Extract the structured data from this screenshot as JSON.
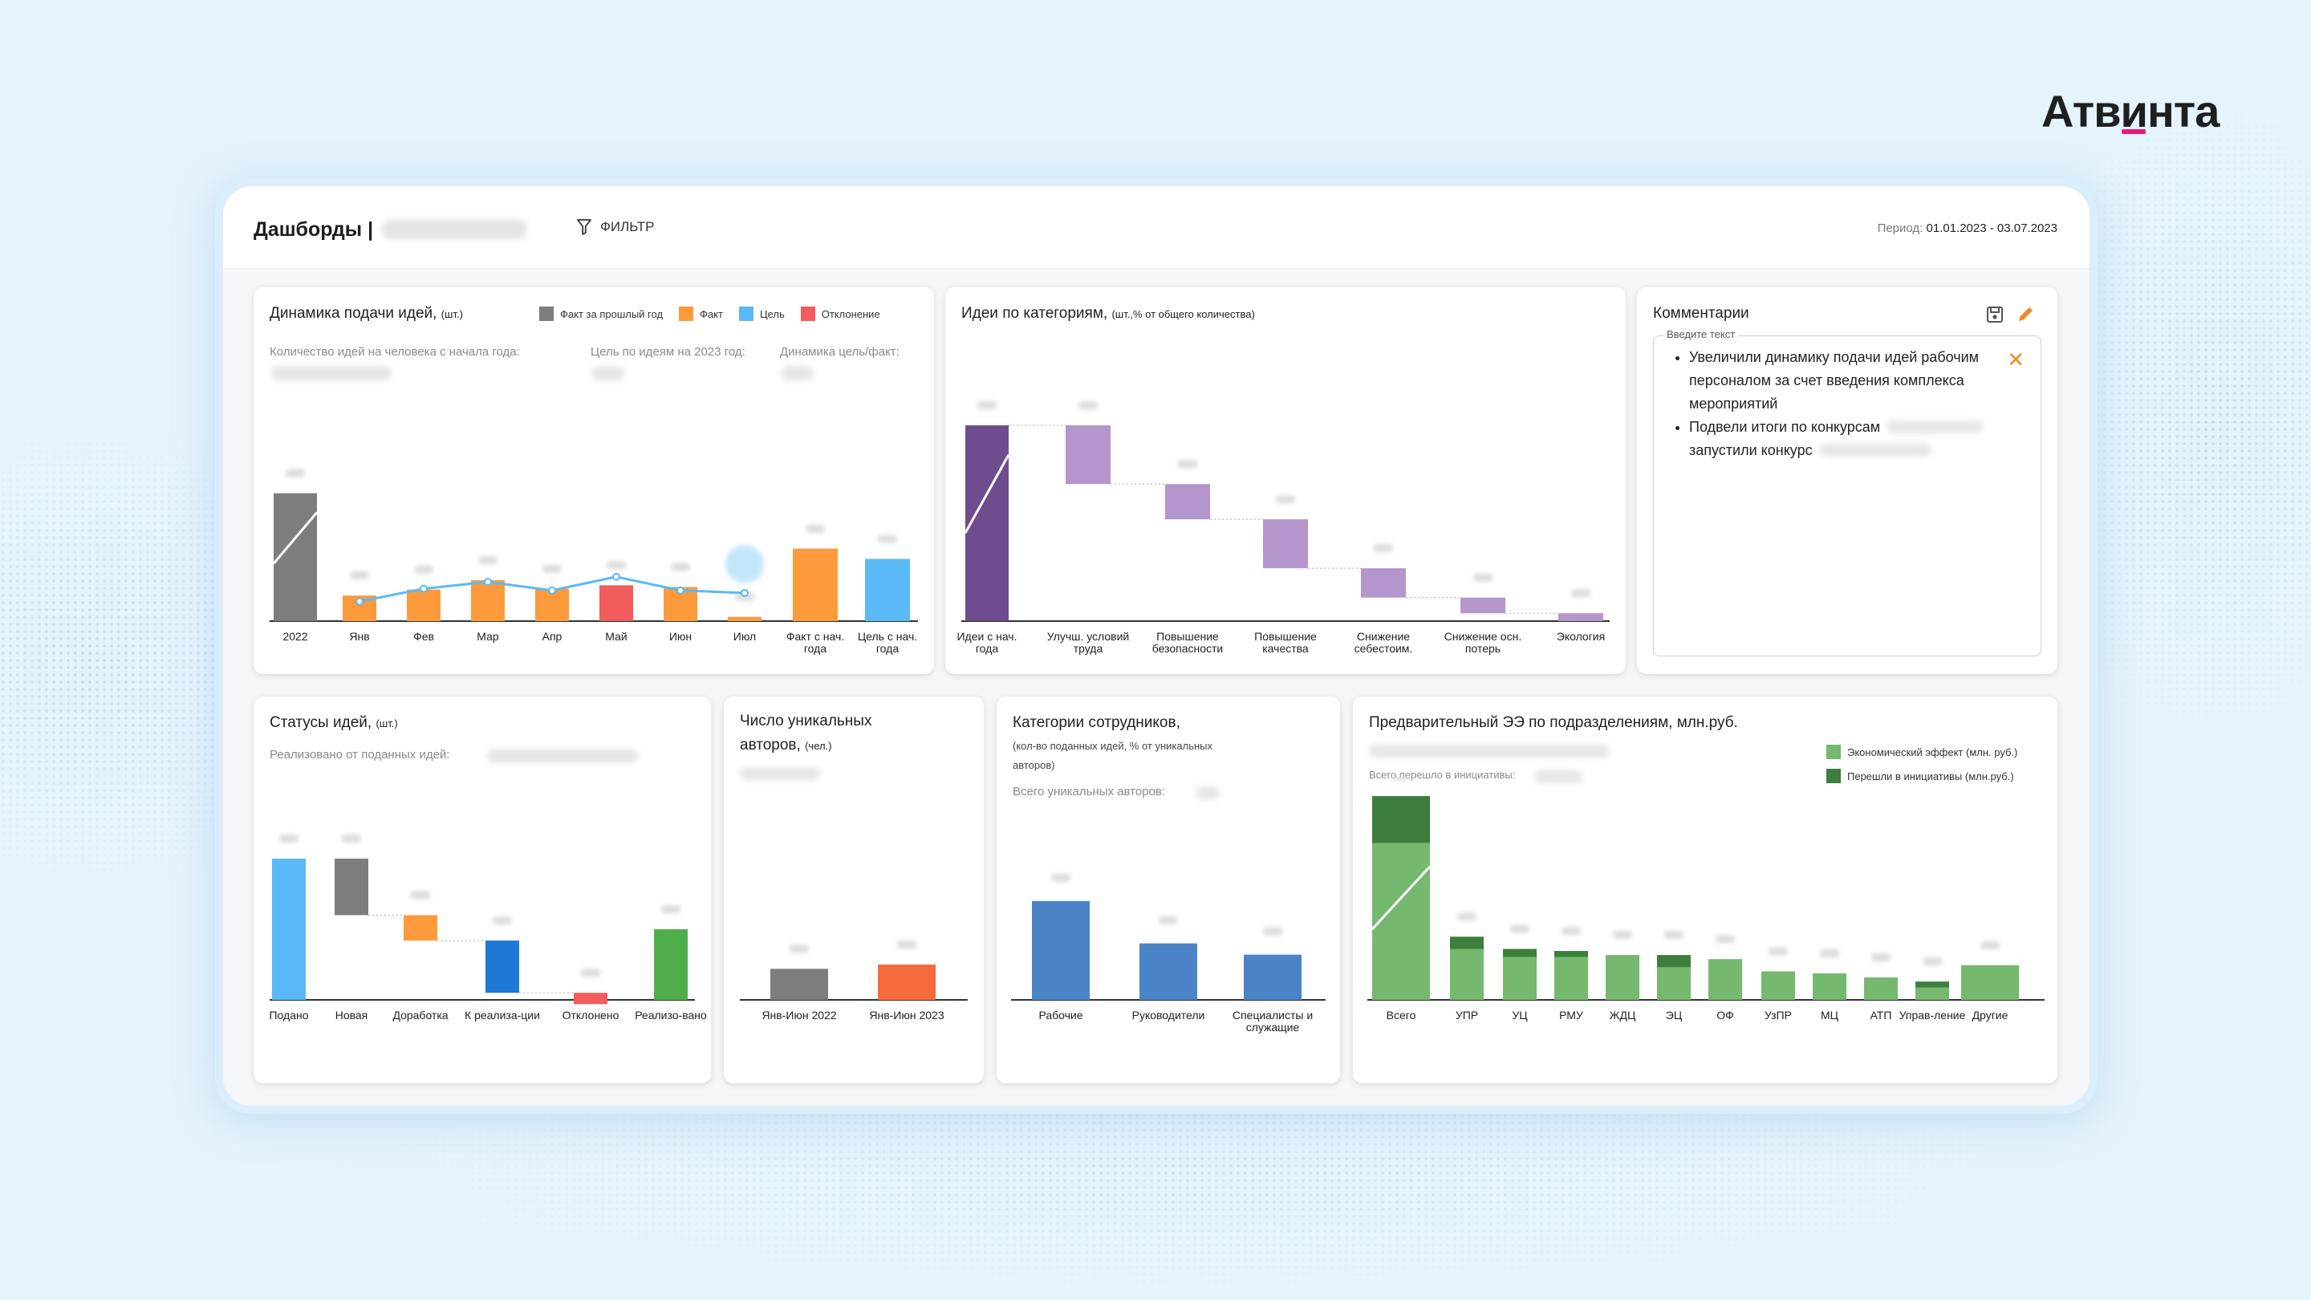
{
  "brand": "Атвинта",
  "header": {
    "title": "Дашборды",
    "separator": "|",
    "filter_label": "ФИЛЬТР",
    "period_label": "Период:",
    "period_value": "01.01.2023 - 03.07.2023"
  },
  "colors": {
    "gray": "#7d7d7d",
    "orange": "#fc9a3c",
    "blue": "#5ab9f6",
    "red": "#f25c5c",
    "purple_dark": "#6f4c8e",
    "purple": "#b495cc",
    "green": "#74b96d",
    "green_dark": "#3c7f3c"
  },
  "dynamics": {
    "title": "Динамика подачи идей,",
    "unit": "(шт.)",
    "legend": [
      "Факт за прошлый год",
      "Факт",
      "Цель",
      "Отклонение"
    ],
    "sub1": "Количество идей на человека с начала года:",
    "sub2": "Цель по идеям на 2023 год:",
    "sub3": "Динамика цель/факт:"
  },
  "categories_panel": {
    "title": "Идеи по категориям,",
    "unit": "(шт.,% от общего количества)"
  },
  "comments": {
    "title": "Комментарии",
    "field_label": "Введите текст",
    "items": [
      "Увеличили динамику подачи идей рабочим персоналом за счет введения комплекса мероприятий",
      "Подвели итоги по конкурсам",
      "запустили конкурс"
    ]
  },
  "statuses": {
    "title": "Статусы идей,",
    "unit": "(шт.)",
    "sub": "Реализовано от поданных идей:"
  },
  "authors": {
    "title_line1": "Число уникальных",
    "title_line2": "авторов,",
    "unit": "(чел.)"
  },
  "employees": {
    "title": "Категории сотрудников,",
    "sub_line1": "(кол-во поданных идей, % от уникальных",
    "sub_line2": "авторов)",
    "total_label": "Всего уникальных авторов:"
  },
  "effect": {
    "title": "Предварительный ЭЭ по подразделениям, млн.руб.",
    "total_label": "Всего перешло в инициативы:",
    "legend": [
      "Экономический эффект (млн. руб.)",
      "Перешли в инициативы (млн.руб.)"
    ]
  },
  "chart_data": [
    {
      "type": "bar",
      "title": "Динамика подачи идей, (шт.)",
      "categories": [
        "2022",
        "Янв",
        "Фев",
        "Мар",
        "Апр",
        "Май",
        "Июн",
        "Июл",
        "Факт с нач. года",
        "Цель с нач. года"
      ],
      "series": [
        {
          "name": "Факт за прошлый год",
          "values": [
            150,
            null,
            null,
            null,
            null,
            null,
            null,
            null,
            null,
            null
          ]
        },
        {
          "name": "Факт",
          "values": [
            null,
            30,
            37,
            48,
            38,
            null,
            40,
            5,
            85,
            null
          ]
        },
        {
          "name": "Отклонение",
          "values": [
            null,
            null,
            null,
            null,
            null,
            42,
            null,
            null,
            null,
            null
          ]
        },
        {
          "name": "Цель",
          "values": [
            null,
            null,
            null,
            null,
            null,
            null,
            null,
            null,
            null,
            73
          ]
        },
        {
          "name": "Цель (линия)",
          "type": "line",
          "values": [
            null,
            23,
            38,
            46,
            36,
            52,
            36,
            33,
            null,
            null
          ]
        }
      ],
      "ylim": [
        0,
        160
      ]
    },
    {
      "type": "bar",
      "title": "Идеи по категориям, (шт.,% от общего количества)",
      "categories": [
        "Идеи с нач. года",
        "Улучш. условий труда",
        "Повышение безопасности",
        "Повышение качества",
        "Снижение себестоим.",
        "Снижение осн. потерь",
        "Экология"
      ],
      "values": [
        100,
        30,
        18,
        25,
        15,
        8,
        4
      ],
      "ylim": [
        0,
        100
      ]
    },
    {
      "type": "bar",
      "title": "Статусы идей, (шт.)",
      "categories": [
        "Подано",
        "Новая",
        "Доработка",
        "К реализа-ции",
        "Отклонено",
        "Реализо-вано"
      ],
      "values": [
        100,
        40,
        18,
        37,
        8,
        50
      ],
      "ylim": [
        0,
        100
      ]
    },
    {
      "type": "bar",
      "title": "Число уникальных авторов, (чел.)",
      "categories": [
        "Янв-Июн 2022",
        "Янв-Июн 2023"
      ],
      "values": [
        22,
        25
      ],
      "ylim": [
        0,
        100
      ]
    },
    {
      "type": "bar",
      "title": "Категории сотрудников",
      "categories": [
        "Рабочие",
        "Руководители",
        "Специалисты и служащие"
      ],
      "values": [
        70,
        40,
        32
      ],
      "ylim": [
        0,
        100
      ]
    },
    {
      "type": "bar",
      "title": "Предварительный ЭЭ по подразделениям, млн.руб.",
      "categories": [
        "Всего",
        "УПР",
        "УЦ",
        "РМУ",
        "ЖДЦ",
        "ЭЦ",
        "ОФ",
        "УзПР",
        "МЦ",
        "АТП",
        "Управ-ление",
        "Другие"
      ],
      "series": [
        {
          "name": "Экономический эффект (млн. руб.)",
          "values": [
            77,
            25,
            21,
            21,
            22,
            16,
            20,
            14,
            13,
            11,
            6,
            17
          ]
        },
        {
          "name": "Перешли в инициативы (млн.руб.)",
          "values": [
            23,
            6,
            4,
            3,
            0,
            6,
            0,
            0,
            0,
            0,
            3,
            0
          ]
        }
      ],
      "ylim": [
        0,
        100
      ]
    }
  ]
}
